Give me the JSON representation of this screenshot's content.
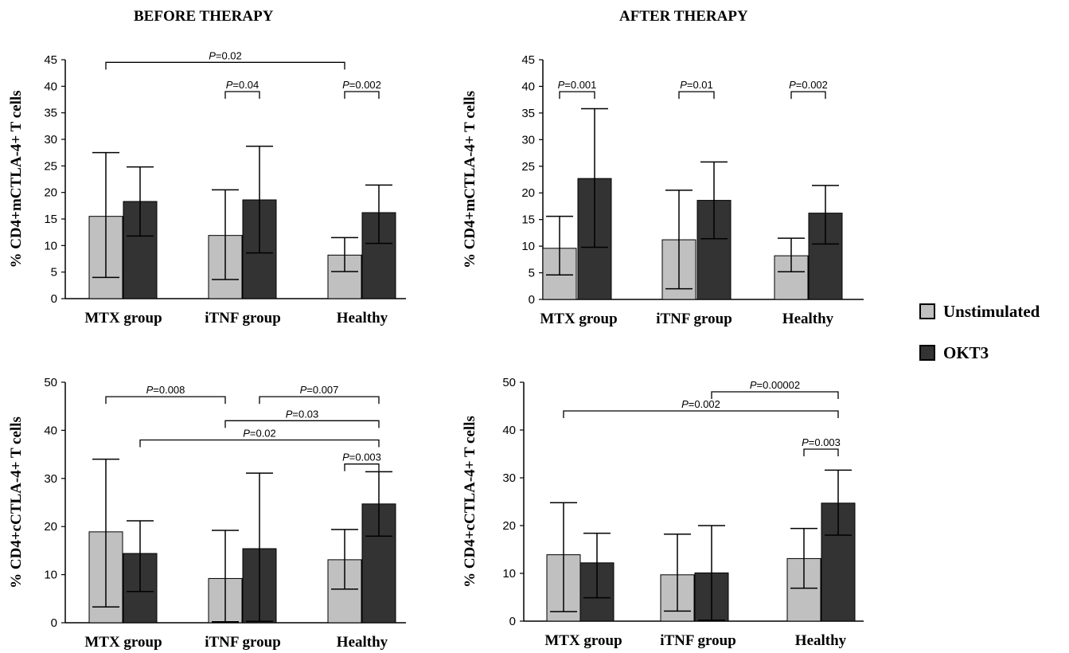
{
  "column_titles": {
    "before": "BEFORE THERAPY",
    "after": "AFTER THERAPY"
  },
  "legend": [
    {
      "label": "Unstimulated",
      "color": "#c0c0c0"
    },
    {
      "label": "OKT3",
      "color": "#333333"
    }
  ],
  "chart_data": [
    {
      "type": "bar",
      "group": "BEFORE THERAPY",
      "ylabel": "% CD4+mCTLA-4+ T cells",
      "categories": [
        "MTX group",
        "iTNF group",
        "Healthy"
      ],
      "ylim": [
        0,
        45
      ],
      "yticks": [
        0,
        5,
        10,
        15,
        20,
        25,
        30,
        35,
        40,
        45
      ],
      "series": [
        {
          "name": "Unstimulated",
          "values": [
            15.5,
            11.9,
            8.2
          ],
          "err_low": [
            4.0,
            3.6,
            5.1
          ],
          "err_high": [
            27.5,
            20.5,
            11.5
          ]
        },
        {
          "name": "OKT3",
          "values": [
            18.3,
            18.6,
            16.2
          ],
          "err_low": [
            11.8,
            8.6,
            10.4
          ],
          "err_high": [
            24.8,
            28.7,
            21.4
          ]
        }
      ],
      "annotations": [
        {
          "label": "P=0.02",
          "from": [
            0,
            0
          ],
          "to": [
            2,
            0
          ],
          "y": 44.5
        },
        {
          "label": "P=0.04",
          "from": [
            1,
            0
          ],
          "to": [
            1,
            1
          ],
          "y": 39.0
        },
        {
          "label": "P=0.002",
          "from": [
            2,
            0
          ],
          "to": [
            2,
            1
          ],
          "y": 39.0
        }
      ]
    },
    {
      "type": "bar",
      "group": "AFTER THERAPY",
      "ylabel": "% CD4+mCTLA-4+ T cells",
      "categories": [
        "MTX group",
        "iTNF group",
        "Healthy"
      ],
      "ylim": [
        0,
        45
      ],
      "yticks": [
        0,
        5,
        10,
        15,
        20,
        25,
        30,
        35,
        40,
        45
      ],
      "series": [
        {
          "name": "Unstimulated",
          "values": [
            9.6,
            11.2,
            8.2
          ],
          "err_low": [
            4.6,
            2.0,
            5.2
          ],
          "err_high": [
            15.6,
            20.5,
            11.5
          ]
        },
        {
          "name": "OKT3",
          "values": [
            22.7,
            18.6,
            16.2
          ],
          "err_low": [
            9.8,
            11.4,
            10.4
          ],
          "err_high": [
            35.8,
            25.8,
            21.4
          ]
        }
      ],
      "annotations": [
        {
          "label": "P=0.001",
          "from": [
            0,
            0
          ],
          "to": [
            0,
            1
          ],
          "y": 39.0
        },
        {
          "label": "P=0.01",
          "from": [
            1,
            0
          ],
          "to": [
            1,
            1
          ],
          "y": 39.0
        },
        {
          "label": "P=0.002",
          "from": [
            2,
            0
          ],
          "to": [
            2,
            1
          ],
          "y": 39.0
        }
      ]
    },
    {
      "type": "bar",
      "group": "BEFORE THERAPY",
      "ylabel": "% CD4+cCTLA-4+ T cells",
      "categories": [
        "MTX group",
        "iTNF group",
        "Healthy"
      ],
      "ylim": [
        0,
        50
      ],
      "yticks": [
        0,
        10,
        20,
        30,
        40,
        50
      ],
      "series": [
        {
          "name": "Unstimulated",
          "values": [
            18.9,
            9.2,
            13.1
          ],
          "err_low": [
            3.3,
            0.2,
            7.0
          ],
          "err_high": [
            34.0,
            19.2,
            19.4
          ]
        },
        {
          "name": "OKT3",
          "values": [
            14.4,
            15.4,
            24.7
          ],
          "err_low": [
            6.5,
            0.3,
            18.0
          ],
          "err_high": [
            21.2,
            31.1,
            31.4
          ]
        }
      ],
      "annotations": [
        {
          "label": "P=0.008",
          "from": [
            0,
            0
          ],
          "to": [
            1,
            0
          ],
          "y": 47.0
        },
        {
          "label": "P=0.007",
          "from": [
            1,
            1
          ],
          "to": [
            2,
            1
          ],
          "y": 47.0
        },
        {
          "label": "P=0.03",
          "from": [
            1,
            0
          ],
          "to": [
            2,
            1
          ],
          "y": 42.0
        },
        {
          "label": "P=0.02",
          "from": [
            0,
            1
          ],
          "to": [
            2,
            1
          ],
          "y": 38.0
        },
        {
          "label": "P=0.003",
          "from": [
            2,
            0
          ],
          "to": [
            2,
            1
          ],
          "y": 33.0
        }
      ]
    },
    {
      "type": "bar",
      "group": "AFTER THERAPY",
      "ylabel": "% CD4+cCTLA-4+ T cells",
      "categories": [
        "MTX group",
        "iTNF group",
        "Healthy"
      ],
      "ylim": [
        0,
        50
      ],
      "yticks": [
        0,
        10,
        20,
        30,
        40,
        50
      ],
      "series": [
        {
          "name": "Unstimulated",
          "values": [
            13.9,
            9.7,
            13.1
          ],
          "err_low": [
            2.0,
            2.1,
            6.9
          ],
          "err_high": [
            24.8,
            18.2,
            19.4
          ]
        },
        {
          "name": "OKT3",
          "values": [
            12.2,
            10.1,
            24.7
          ],
          "err_low": [
            4.9,
            0.2,
            18.0
          ],
          "err_high": [
            18.4,
            20.0,
            31.6
          ]
        }
      ],
      "annotations": [
        {
          "label": "P=0.00002",
          "from": [
            1,
            1
          ],
          "to": [
            2,
            1
          ],
          "y": 48.0
        },
        {
          "label": "P=0.002",
          "from": [
            0,
            0
          ],
          "to": [
            2,
            1
          ],
          "y": 44.0
        },
        {
          "label": "P=0.003",
          "from": [
            2,
            0
          ],
          "to": [
            2,
            1
          ],
          "y": 36.0
        }
      ]
    }
  ]
}
